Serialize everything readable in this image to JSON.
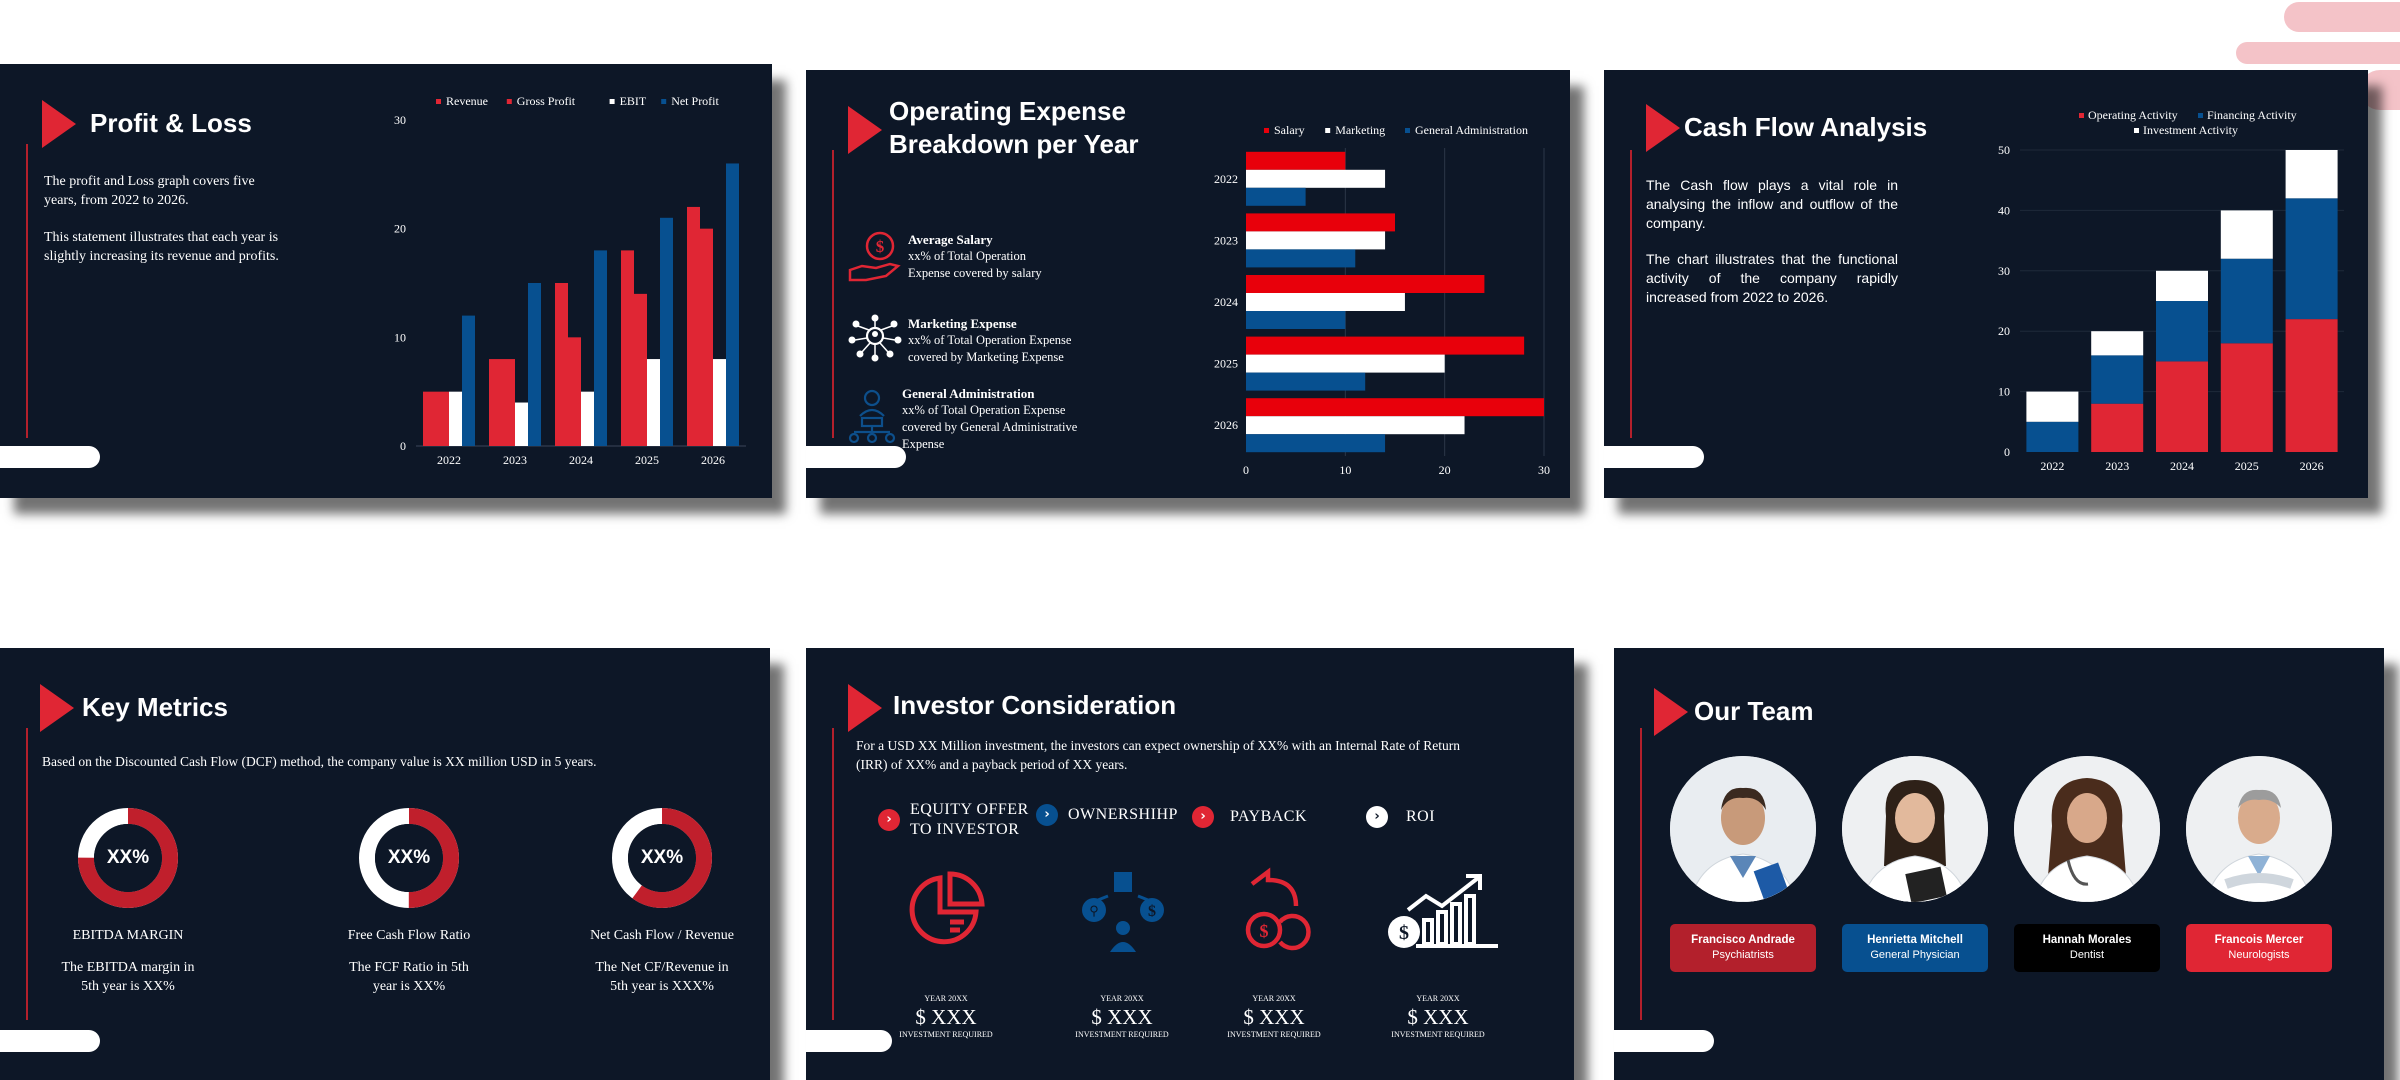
{
  "colors": {
    "background": "#0d1727",
    "red": "#e02634",
    "blue": "#075090",
    "white": "#ffffff",
    "black": "#000000"
  },
  "slides": {
    "profit_loss": {
      "title": "Profit & Loss",
      "para1": "The profit and Loss graph covers five years, from 2022 to 2026.",
      "para2": "This statement illustrates that each year is slightly increasing its revenue and profits."
    },
    "opex": {
      "title_line1": "Operating Expense",
      "title_line2": "Breakdown per Year",
      "features": [
        {
          "icon": "salary-hand-icon",
          "title": "Average Salary",
          "lines": [
            "xx% of Total Operation",
            "Expense covered by salary"
          ]
        },
        {
          "icon": "marketing-network-icon",
          "title": "Marketing Expense",
          "lines": [
            "xx% of Total Operation Expense",
            "covered by Marketing Expense"
          ]
        },
        {
          "icon": "administration-org-icon",
          "title": "General Administration",
          "lines": [
            "xx% of Total Operation Expense",
            "covered by General Administrative",
            "Expense"
          ]
        }
      ]
    },
    "cash_flow": {
      "title": "Cash Flow Analysis",
      "para1": "The Cash flow plays a vital role in analysing the inflow and outflow of the company.",
      "para2": "The chart illustrates that the functional activity of the company rapidly increased from 2022 to 2026."
    },
    "key_metrics": {
      "title": "Key Metrics",
      "intro": "Based on the Discounted Cash Flow (DCF) method, the company value is XX million USD in 5 years.",
      "metrics": [
        {
          "value": "XX%",
          "label": "EBITDA MARGIN",
          "desc1": "The EBITDA margin in",
          "desc2": "5th  year is XX%",
          "fraction": 0.75
        },
        {
          "value": "XX%",
          "label": "Free Cash Flow Ratio",
          "desc1": "The FCF Ratio in 5th",
          "desc2": "year is XX%",
          "fraction": 0.5
        },
        {
          "value": "XX%",
          "label": "Net Cash Flow / Revenue",
          "desc1": "The Net CF/Revenue in",
          "desc2": "5th year is XXX%",
          "fraction": 0.6
        }
      ]
    },
    "investor": {
      "title": "Investor Consideration",
      "intro1": "For a USD XX Million investment, the investors can expect ownership of XX% with an Internal Rate of Return",
      "intro2": "(IRR) of XX% and a payback period of XX years.",
      "points": [
        {
          "line1": "EQUITY OFFER",
          "line2": "TO INVESTOR",
          "color": "#e02634"
        },
        {
          "line1": "OWNERSHIHP",
          "line2": "",
          "color": "#075090"
        },
        {
          "line1": "PAYBACK",
          "line2": "",
          "color": "#e02634"
        },
        {
          "line1": "ROI",
          "line2": "",
          "color": "#ffffff"
        }
      ],
      "cards": [
        {
          "icon": "pie-chart-icon",
          "year": "YEAR 20XX",
          "amount": "$ XXX",
          "req": "INVESTMENT REQUIRED"
        },
        {
          "icon": "business-network-icon",
          "year": "YEAR 20XX",
          "amount": "$ XXX",
          "req": "INVESTMENT REQUIRED"
        },
        {
          "icon": "coins-return-icon",
          "year": "YEAR 20XX",
          "amount": "$ XXX",
          "req": "INVESTMENT REQUIRED"
        },
        {
          "icon": "growth-chart-icon",
          "year": "YEAR 20XX",
          "amount": "$ XXX",
          "req": "INVESTMENT REQUIRED"
        }
      ]
    },
    "team": {
      "title": "Our Team",
      "members": [
        {
          "name": "Francisco Andrade",
          "role": "Psychiatrists",
          "color": "#b3202c"
        },
        {
          "name": "Henrietta Mitchell",
          "role": "General Physician",
          "color": "#075090"
        },
        {
          "name": "Hannah Morales",
          "role": "Dentist",
          "color": "#000000"
        },
        {
          "name": "Francois Mercer",
          "role": "Neurologists",
          "color": "#e02634"
        }
      ]
    }
  },
  "chart_data": [
    {
      "type": "bar",
      "categories": [
        "2022",
        "2023",
        "2024",
        "2025",
        "2026"
      ],
      "series": [
        {
          "name": "Revenue",
          "values": [
            5,
            8,
            15,
            18,
            22
          ],
          "color": "#e02634"
        },
        {
          "name": "Gross Profit",
          "values": [
            5,
            8,
            10,
            14,
            20
          ],
          "color": "#e02634"
        },
        {
          "name": "EBIT",
          "values": [
            5,
            4,
            5,
            8,
            8
          ],
          "color": "#ffffff"
        },
        {
          "name": "Net Profit",
          "values": [
            12,
            15,
            18,
            21,
            26
          ],
          "color": "#075090"
        }
      ],
      "ylim": [
        0,
        30
      ],
      "yticks": [
        0,
        10,
        20,
        30
      ],
      "legend": "top"
    },
    {
      "type": "bar",
      "orientation": "horizontal",
      "categories": [
        "2022",
        "2023",
        "2024",
        "2025",
        "2026"
      ],
      "series": [
        {
          "name": "Salary",
          "values": [
            10,
            15,
            24,
            28,
            30
          ],
          "color": "#e8000b"
        },
        {
          "name": "Marketing",
          "values": [
            14,
            14,
            16,
            20,
            22
          ],
          "color": "#ffffff"
        },
        {
          "name": "General Administration",
          "values": [
            6,
            11,
            10,
            12,
            14
          ],
          "color": "#075090"
        }
      ],
      "xlim": [
        0,
        30
      ],
      "xticks": [
        0,
        10,
        20,
        30
      ],
      "legend": "top"
    },
    {
      "type": "bar",
      "stacked": true,
      "categories": [
        "2022",
        "2023",
        "2024",
        "2025",
        "2026"
      ],
      "series": [
        {
          "name": "Operating Activity",
          "values": [
            0,
            8,
            15,
            18,
            22
          ],
          "color": "#e02634"
        },
        {
          "name": "Financing Activity",
          "values": [
            5,
            8,
            10,
            14,
            20
          ],
          "color": "#075090"
        },
        {
          "name": "Investment Activity",
          "values": [
            5,
            4,
            5,
            8,
            8
          ],
          "color": "#ffffff"
        }
      ],
      "ylim": [
        0,
        50
      ],
      "yticks": [
        0,
        10,
        20,
        30,
        40,
        50
      ],
      "legend": "top"
    }
  ]
}
